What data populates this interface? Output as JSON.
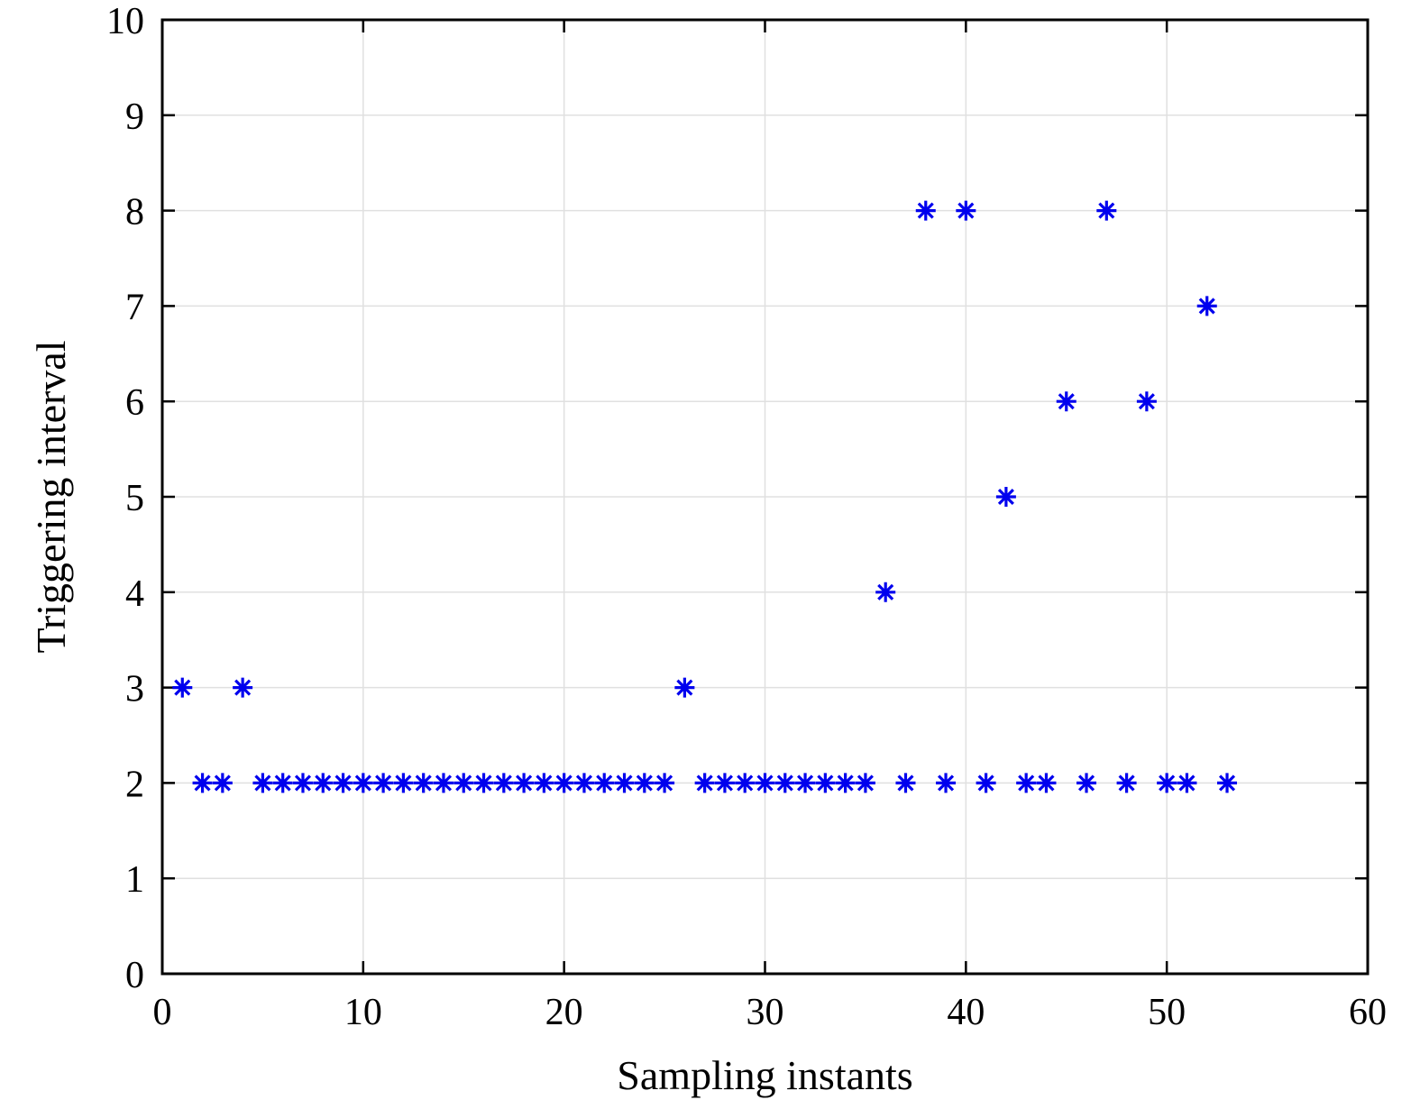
{
  "chart_data": {
    "type": "scatter",
    "title": "",
    "xlabel": "Sampling instants",
    "ylabel": "Triggering interval",
    "xlim": [
      0,
      60
    ],
    "ylim": [
      0,
      10
    ],
    "xticks": [
      0,
      10,
      20,
      30,
      40,
      50,
      60
    ],
    "yticks": [
      0,
      1,
      2,
      3,
      4,
      5,
      6,
      7,
      8,
      9,
      10
    ],
    "grid": true,
    "marker": "asterisk",
    "color": "#0000ee",
    "series": [
      {
        "x": [
          1,
          2,
          3,
          4,
          5,
          6,
          7,
          8,
          9,
          10,
          11,
          12,
          13,
          14,
          15,
          16,
          17,
          18,
          19,
          20,
          21,
          22,
          23,
          24,
          25,
          26,
          27,
          28,
          29,
          30,
          31,
          32,
          33,
          34,
          35,
          36,
          37,
          38,
          39,
          40,
          41,
          42,
          43,
          44,
          45,
          46,
          47,
          48,
          49,
          50,
          51,
          52,
          53
        ],
        "y": [
          3,
          2,
          2,
          3,
          2,
          2,
          2,
          2,
          2,
          2,
          2,
          2,
          2,
          2,
          2,
          2,
          2,
          2,
          2,
          2,
          2,
          2,
          2,
          2,
          2,
          3,
          2,
          2,
          2,
          2,
          2,
          2,
          2,
          2,
          2,
          4,
          2,
          8,
          2,
          8,
          2,
          5,
          2,
          2,
          6,
          2,
          8,
          2,
          6,
          2,
          2,
          7,
          2
        ]
      }
    ]
  }
}
